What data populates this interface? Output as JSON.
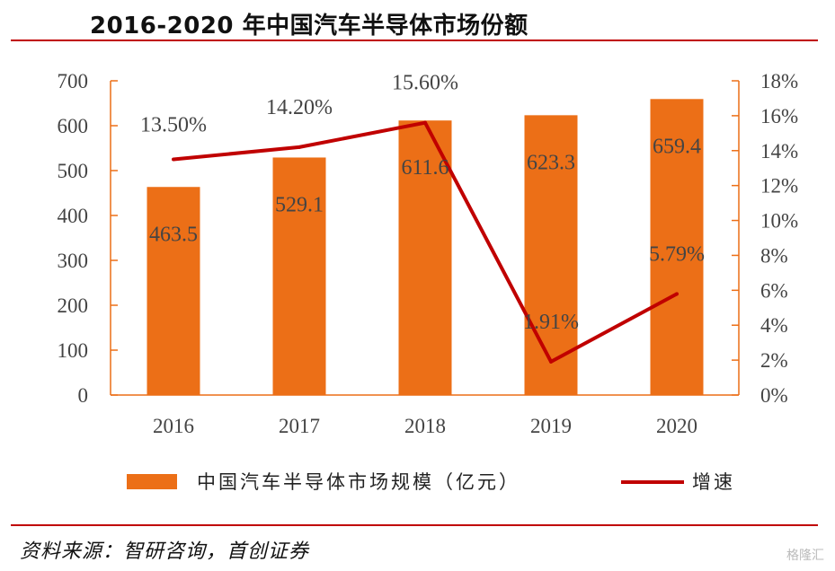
{
  "page": {
    "title": "2016-2020 年中国汽车半导体市场份额",
    "source": "资料来源：智研咨询，首创证券",
    "watermark": "格隆汇"
  },
  "colors": {
    "bar": "#ec6f17",
    "line": "#c00000",
    "rule": "#c00000",
    "axis": "#ec6f17",
    "text": "#444444"
  },
  "chart_data": {
    "type": "bar",
    "categories": [
      "2016",
      "2017",
      "2018",
      "2019",
      "2020"
    ],
    "series": [
      {
        "name": "中国汽车半导体市场规模（亿元）",
        "type": "bar",
        "axis": "left",
        "values": [
          463.5,
          529.1,
          611.6,
          623.3,
          659.4
        ],
        "labels": [
          "463.5",
          "529.1",
          "611.6",
          "623.3",
          "659.4"
        ]
      },
      {
        "name": "增速",
        "type": "line",
        "axis": "right",
        "values": [
          13.5,
          14.2,
          15.6,
          1.91,
          5.79
        ],
        "labels": [
          "13.50%",
          "14.20%",
          "15.60%",
          "1.91%",
          "5.79%"
        ]
      }
    ],
    "y_left": {
      "min": 0,
      "max": 700,
      "ticks": [
        "0",
        "100",
        "200",
        "300",
        "400",
        "500",
        "600",
        "700"
      ]
    },
    "y_right": {
      "min": 0,
      "max": 18,
      "ticks": [
        "0%",
        "2%",
        "4%",
        "6%",
        "8%",
        "10%",
        "12%",
        "14%",
        "16%",
        "18%"
      ]
    },
    "legend": "bottom",
    "grid": false
  }
}
